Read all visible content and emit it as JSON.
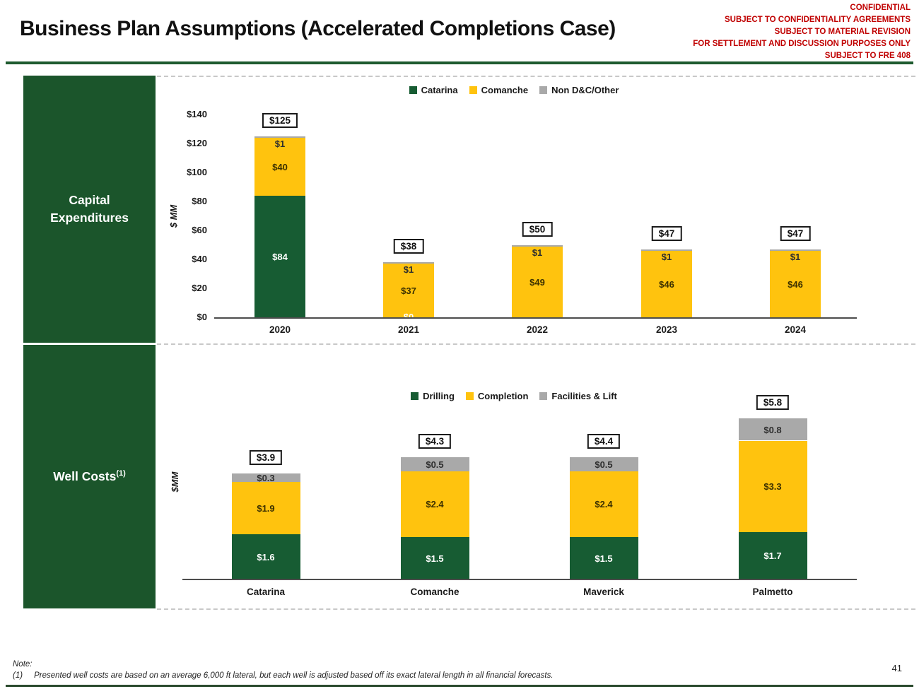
{
  "header": {
    "title": "Business Plan Assumptions (Accelerated Completions Case)",
    "confidential_lines": [
      "CONFIDENTIAL",
      "SUBJECT TO CONFIDENTIALITY AGREEMENTS",
      "SUBJECT TO MATERIAL REVISION",
      "FOR SETTLEMENT AND DISCUSSION PURPOSES ONLY",
      "SUBJECT TO FRE 408"
    ]
  },
  "sidebar": {
    "capex_label": "Capital Expenditures",
    "well_costs_label": "Well Costs",
    "well_costs_superscript": "(1)"
  },
  "colors": {
    "accent_green": "#175C33",
    "accent_yellow": "#FFC30E",
    "accent_gray": "#A9A9A9",
    "sidebar_green": "#1B552B",
    "rule_green": "#1E5B2F",
    "bottom_rule_green": "#2B4A2E",
    "confidential_red": "#C00000"
  },
  "chart_data": [
    {
      "type": "bar",
      "stacked": true,
      "panel_title": "Capital Expenditures",
      "ylabel": "$ MM",
      "ylim": [
        0,
        140
      ],
      "yticks": [
        "$0",
        "$20",
        "$40",
        "$60",
        "$80",
        "$100",
        "$120",
        "$140"
      ],
      "ytick_values": [
        0,
        20,
        40,
        60,
        80,
        100,
        120,
        140
      ],
      "grid": false,
      "legend_position": "top",
      "categories": [
        "2020",
        "2021",
        "2022",
        "2023",
        "2024"
      ],
      "series": [
        {
          "name": "Catarina",
          "color_key": "accent_green",
          "label_color": "#FFFFFF"
        },
        {
          "name": "Comanche",
          "color_key": "accent_yellow",
          "label_color": "#3D3100"
        },
        {
          "name": "Non D&C/Other",
          "color_key": "accent_gray",
          "label_color": "#2E2E2E"
        }
      ],
      "bars": [
        {
          "category": "2020",
          "total": 125,
          "total_label": "$125",
          "segments": [
            {
              "value": 84,
              "label": "$84"
            },
            {
              "value": 40,
              "label": "$40"
            },
            {
              "value": 1,
              "label": "$1"
            }
          ]
        },
        {
          "category": "2021",
          "total": 38,
          "total_label": "$38",
          "segments": [
            {
              "value": 0,
              "label": "$0"
            },
            {
              "value": 37,
              "label": "$37"
            },
            {
              "value": 1,
              "label": "$1"
            }
          ]
        },
        {
          "category": "2022",
          "total": 50,
          "total_label": "$50",
          "segments": [
            {
              "value": 0,
              "label": ""
            },
            {
              "value": 49,
              "label": "$49"
            },
            {
              "value": 1,
              "label": "$1"
            }
          ]
        },
        {
          "category": "2023",
          "total": 47,
          "total_label": "$47",
          "segments": [
            {
              "value": 0,
              "label": ""
            },
            {
              "value": 46,
              "label": "$46"
            },
            {
              "value": 1,
              "label": "$1"
            }
          ]
        },
        {
          "category": "2024",
          "total": 47,
          "total_label": "$47",
          "segments": [
            {
              "value": 0,
              "label": ""
            },
            {
              "value": 46,
              "label": "$46"
            },
            {
              "value": 1,
              "label": "$1"
            }
          ]
        }
      ]
    },
    {
      "type": "bar",
      "stacked": true,
      "panel_title": "Well Costs",
      "ylabel": "$MM",
      "ylim": [
        0,
        6
      ],
      "yticks": [],
      "ytick_values": [],
      "grid": false,
      "legend_position": "top",
      "categories": [
        "Catarina",
        "Comanche",
        "Maverick",
        "Palmetto"
      ],
      "series": [
        {
          "name": "Drilling",
          "color_key": "accent_green",
          "label_color": "#FFFFFF"
        },
        {
          "name": "Completion",
          "color_key": "accent_yellow",
          "label_color": "#3D3100"
        },
        {
          "name": "Facilities & Lift",
          "color_key": "accent_gray",
          "label_color": "#2E2E2E"
        }
      ],
      "bars": [
        {
          "category": "Catarina",
          "total": 3.9,
          "total_label": "$3.9",
          "segments": [
            {
              "value": 1.6,
              "label": "$1.6"
            },
            {
              "value": 1.9,
              "label": "$1.9"
            },
            {
              "value": 0.3,
              "label": "$0.3"
            }
          ]
        },
        {
          "category": "Comanche",
          "total": 4.3,
          "total_label": "$4.3",
          "segments": [
            {
              "value": 1.5,
              "label": "$1.5"
            },
            {
              "value": 2.4,
              "label": "$2.4"
            },
            {
              "value": 0.5,
              "label": "$0.5"
            }
          ]
        },
        {
          "category": "Maverick",
          "total": 4.4,
          "total_label": "$4.4",
          "segments": [
            {
              "value": 1.5,
              "label": "$1.5"
            },
            {
              "value": 2.4,
              "label": "$2.4"
            },
            {
              "value": 0.5,
              "label": "$0.5"
            }
          ]
        },
        {
          "category": "Palmetto",
          "total": 5.8,
          "total_label": "$5.8",
          "segments": [
            {
              "value": 1.7,
              "label": "$1.7"
            },
            {
              "value": 3.3,
              "label": "$3.3"
            },
            {
              "value": 0.8,
              "label": "$0.8"
            }
          ]
        }
      ]
    }
  ],
  "footer": {
    "note_label": "Note:",
    "note_marker": "(1)",
    "note_text": "Presented well costs are based on an average 6,000 ft lateral, but each well is adjusted based off its exact lateral length in all financial forecasts.",
    "page_number": "41"
  }
}
